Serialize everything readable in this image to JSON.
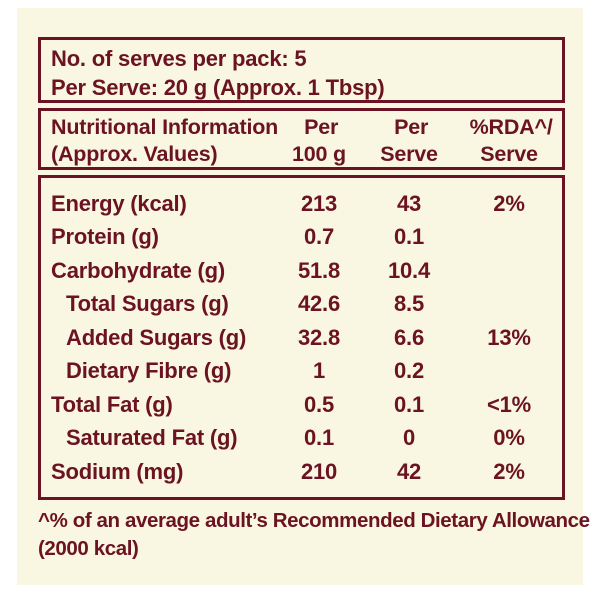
{
  "label": {
    "serves_info": {
      "line1": "No. of serves per pack: 5",
      "line2": "Per Serve: 20 g (Approx. 1 Tbsp)"
    },
    "header": {
      "col1_line1": "Nutritional Information",
      "col1_line2": "(Approx. Values)",
      "col2_line1": "Per",
      "col2_line2": "100 g",
      "col3_line1": "Per",
      "col3_line2": "Serve",
      "col4_line1": "%RDA^/",
      "col4_line2": "Serve"
    },
    "rows": [
      {
        "name": "Energy (kcal)",
        "per_100g": "213",
        "per_serve": "43",
        "rda": "2%",
        "indent": false
      },
      {
        "name": "Protein (g)",
        "per_100g": "0.7",
        "per_serve": "0.1",
        "rda": "",
        "indent": false
      },
      {
        "name": "Carbohydrate (g)",
        "per_100g": "51.8",
        "per_serve": "10.4",
        "rda": "",
        "indent": false
      },
      {
        "name": "Total Sugars (g)",
        "per_100g": "42.6",
        "per_serve": "8.5",
        "rda": "",
        "indent": true
      },
      {
        "name": "Added Sugars (g)",
        "per_100g": "32.8",
        "per_serve": "6.6",
        "rda": "13%",
        "indent": true
      },
      {
        "name": "Dietary Fibre (g)",
        "per_100g": "1",
        "per_serve": "0.2",
        "rda": "",
        "indent": true
      },
      {
        "name": "Total Fat (g)",
        "per_100g": "0.5",
        "per_serve": "0.1",
        "rda": "<1%",
        "indent": false
      },
      {
        "name": "Saturated Fat (g)",
        "per_100g": "0.1",
        "per_serve": "0",
        "rda": "0%",
        "indent": true
      },
      {
        "name": "Sodium (mg)",
        "per_100g": "210",
        "per_serve": "42",
        "rda": "2%",
        "indent": false
      }
    ],
    "footnote": {
      "line1": "^% of an average adult’s Recommended Dietary Allowance",
      "line2": "(2000 kcal)"
    },
    "colors": {
      "text": "#6b1322",
      "border": "#6b1322",
      "panel_bg": "#f9f6e1",
      "page_bg": "#ffffff"
    }
  }
}
